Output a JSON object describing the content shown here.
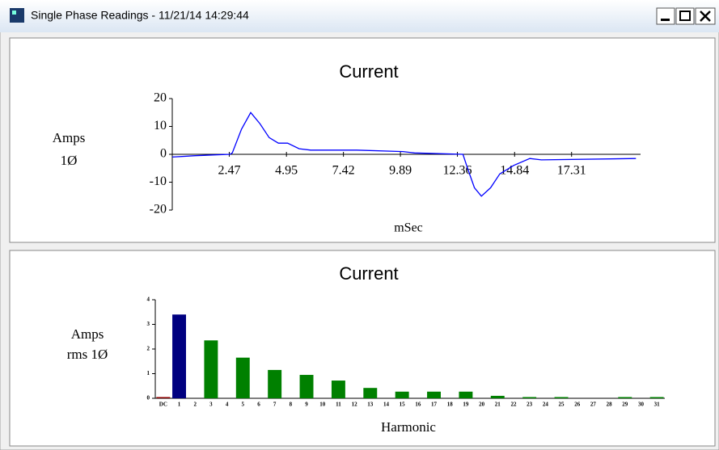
{
  "window": {
    "title": "Single Phase Readings - 11/21/14 14:29:44"
  },
  "chart_data": [
    {
      "type": "line",
      "title": "Current",
      "ylabel": [
        "Amps",
        "1Ø"
      ],
      "xlabel": "mSec",
      "color": "#0000ff",
      "x": [
        0,
        1,
        2.5,
        2.6,
        3.0,
        3.4,
        3.8,
        4.2,
        4.6,
        5.0,
        5.5,
        6.0,
        8.0,
        10.0,
        10.5,
        12.6,
        12.8,
        13.1,
        13.4,
        13.8,
        14.2,
        14.8,
        15.5,
        16.0,
        20.1
      ],
      "values": [
        -1,
        -0.5,
        0,
        0.5,
        9,
        15,
        11,
        6,
        4,
        4,
        2,
        1.5,
        1.5,
        1,
        0.5,
        0,
        -5,
        -12,
        -15,
        -12,
        -7,
        -4,
        -1.5,
        -2,
        -1.5
      ],
      "xlim": [
        0,
        20.3
      ],
      "xticks": [
        2.47,
        4.95,
        7.42,
        9.89,
        12.36,
        14.84,
        17.31
      ],
      "ylim": [
        -20,
        20
      ],
      "yticks": [
        -20,
        -10,
        0,
        10,
        20
      ]
    },
    {
      "type": "bar",
      "title": "Current",
      "ylabel": [
        "Amps",
        "rms 1Ø"
      ],
      "xlabel": "Harmonic",
      "categories": [
        "DC",
        "1",
        "2",
        "3",
        "4",
        "5",
        "6",
        "7",
        "8",
        "9",
        "10",
        "11",
        "12",
        "13",
        "14",
        "15",
        "16",
        "17",
        "18",
        "19",
        "20",
        "21",
        "22",
        "23",
        "24",
        "25",
        "26",
        "27",
        "28",
        "29",
        "30",
        "31"
      ],
      "values": [
        0.05,
        3.4,
        0,
        2.35,
        0,
        1.65,
        0,
        1.15,
        0,
        0.95,
        0,
        0.72,
        0,
        0.42,
        0,
        0.27,
        0,
        0.27,
        0,
        0.27,
        0,
        0.1,
        0,
        0.05,
        0,
        0.05,
        0,
        0,
        0,
        0.05,
        0,
        0.05
      ],
      "colors": [
        "#8b0000",
        "#000080",
        "#008000",
        "#008000",
        "#008000",
        "#008000",
        "#008000",
        "#008000",
        "#008000",
        "#008000",
        "#008000",
        "#008000",
        "#008000",
        "#008000",
        "#008000",
        "#008000",
        "#008000",
        "#008000",
        "#008000",
        "#008000",
        "#008000",
        "#008000",
        "#008000",
        "#008000",
        "#008000",
        "#008000",
        "#008000",
        "#008000",
        "#008000",
        "#008000",
        "#008000",
        "#008000"
      ],
      "ylim": [
        0,
        4
      ],
      "yticks": [
        0,
        1,
        2,
        3,
        4
      ]
    }
  ]
}
